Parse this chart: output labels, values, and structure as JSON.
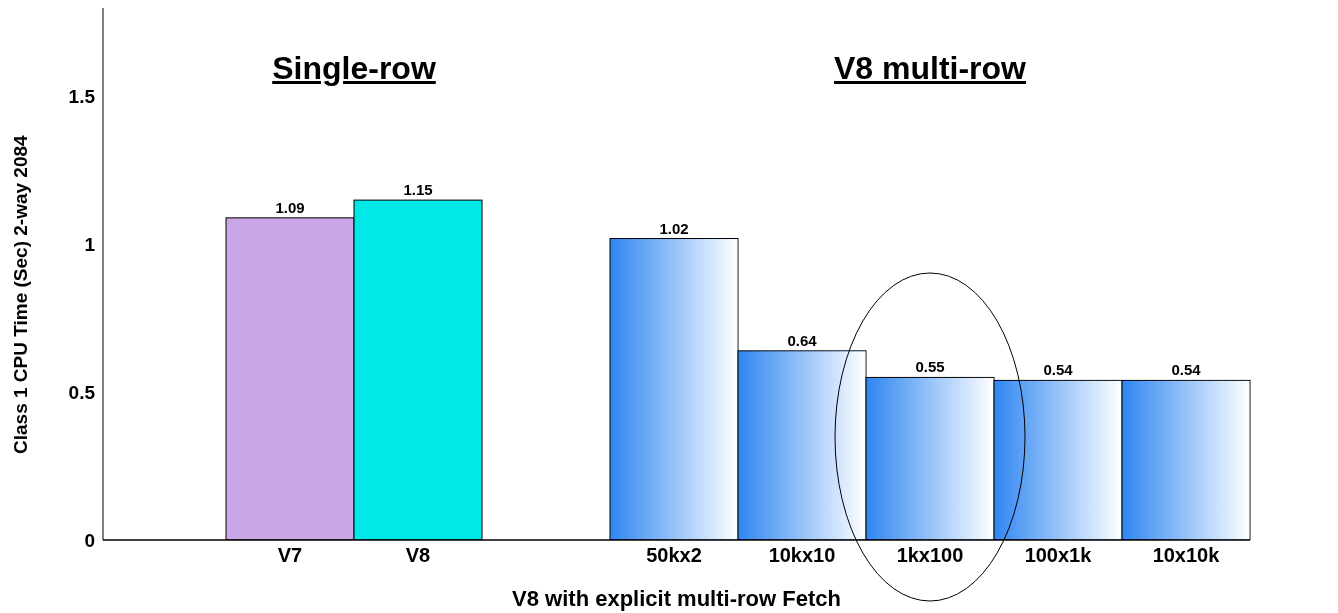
{
  "chart_data": {
    "type": "bar",
    "categories": [
      "V7",
      "V8",
      null,
      "50kx2",
      "10kx10",
      "1kx100",
      "100x1k",
      "10x10k"
    ],
    "values": [
      1.09,
      1.15,
      null,
      1.02,
      0.64,
      0.55,
      0.54,
      0.54
    ],
    "colors": [
      "#c9a6e6",
      "#00e8e8",
      null,
      "#2f86f2",
      "#2f86f2",
      "#2f86f2",
      "#2f86f2",
      "#2f86f2"
    ],
    "xlabel": "V8 with explicit multi-row Fetch",
    "ylabel": "Class 1 CPU Time (Sec)  2-way 2084",
    "annotations": [
      "Single-row",
      "V8 multi-row"
    ],
    "ylim": [
      0,
      1.8
    ],
    "yticks": [
      0,
      0.5,
      1,
      1.5
    ],
    "grid": false,
    "legend": false,
    "data_labels": true
  }
}
